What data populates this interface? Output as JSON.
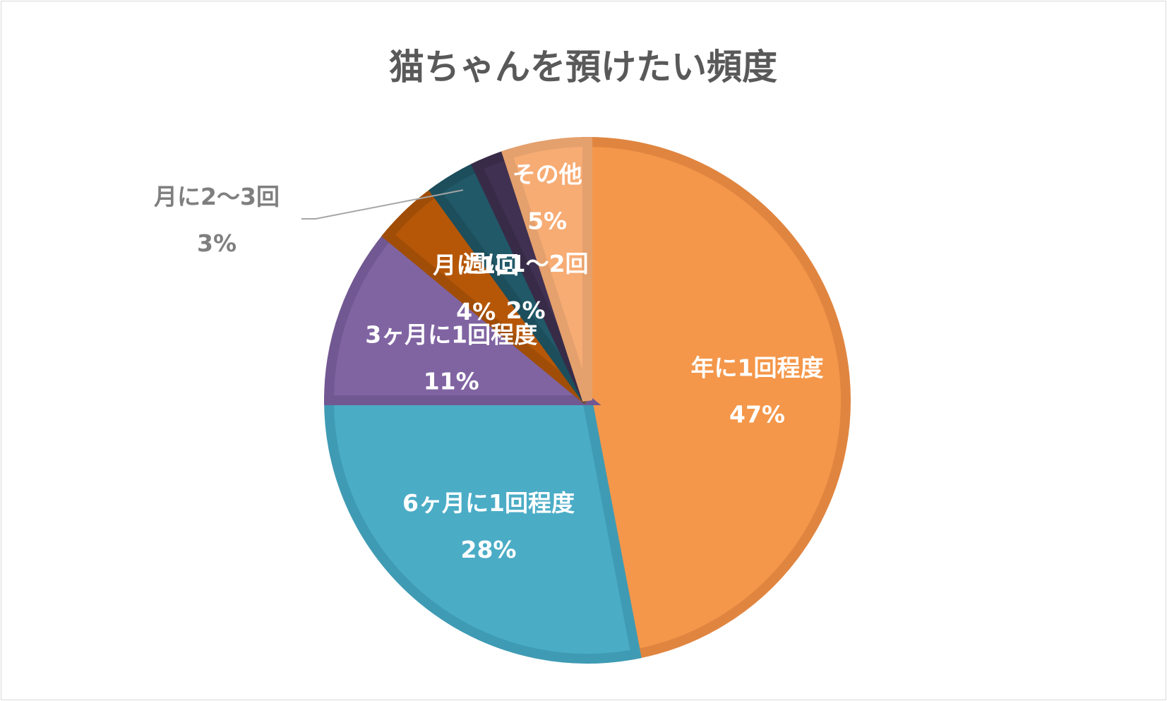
{
  "chart_data": {
    "type": "pie",
    "title": "猫ちゃんを預けたい頻度",
    "categories": [
      "年に1回程度",
      "6ヶ月に1回程度",
      "3ヶ月に1回程度",
      "月に1回",
      "月に2～3回",
      "週に1～2回",
      "その他"
    ],
    "values": [
      47,
      28,
      11,
      4,
      3,
      2,
      5
    ],
    "value_labels": [
      "47%",
      "28%",
      "11%",
      "4%",
      "3%",
      "2%",
      "5%"
    ],
    "colors": [
      "#f4974a",
      "#4bacc6",
      "#8064a2",
      "#b65708",
      "#215968",
      "#403152",
      "#f7ac74"
    ],
    "edge_colors": [
      "#e08540",
      "#3f9bb4",
      "#725892",
      "#a04d07",
      "#1c4e5c",
      "#382b48",
      "#e4a06d"
    ],
    "start_angle": "12 o'clock",
    "direction": "clockwise",
    "legend": "none",
    "data_labels": "category name and percentage"
  }
}
